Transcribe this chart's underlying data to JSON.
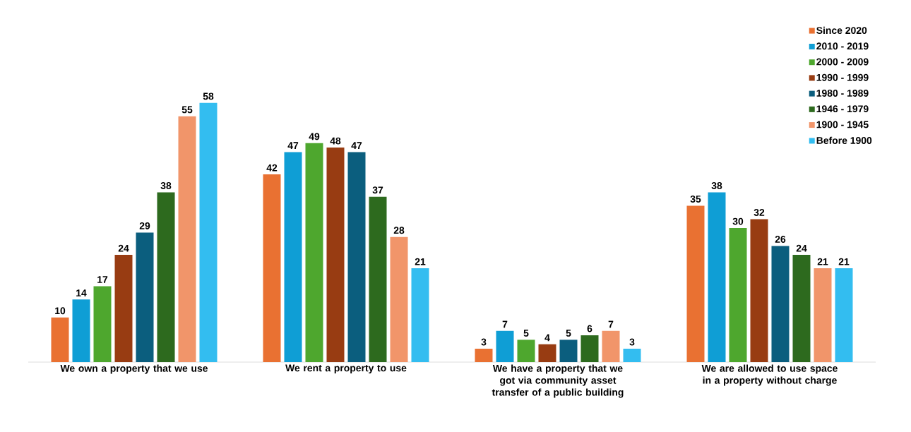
{
  "chart_data": {
    "type": "bar",
    "categories": [
      "We own a property that we use",
      "We rent a property to use",
      "We have a property that we got via community asset transfer of a public building",
      "We are allowed to use space in a property without charge"
    ],
    "series": [
      {
        "name": "Since 2020",
        "color": "#e97132",
        "values": [
          10,
          42,
          3,
          35
        ]
      },
      {
        "name": "2010 - 2019",
        "color": "#0f9ed5",
        "values": [
          14,
          47,
          7,
          38
        ]
      },
      {
        "name": "2000 - 2009",
        "color": "#4ea72e",
        "values": [
          17,
          49,
          5,
          30
        ]
      },
      {
        "name": "1990 - 1999",
        "color": "#983c12",
        "values": [
          24,
          48,
          4,
          32
        ]
      },
      {
        "name": "1980 - 1989",
        "color": "#0b5e7e",
        "values": [
          29,
          47,
          5,
          26
        ]
      },
      {
        "name": "1946 - 1979",
        "color": "#2d6a1e",
        "values": [
          38,
          37,
          6,
          24
        ]
      },
      {
        "name": "1900 - 1945",
        "color": "#f1956a",
        "values": [
          55,
          28,
          7,
          21
        ]
      },
      {
        "name": "Before 1900",
        "color": "#33bdf0",
        "values": [
          58,
          21,
          3,
          21
        ]
      }
    ],
    "data_labels": true,
    "legend": "top right"
  }
}
